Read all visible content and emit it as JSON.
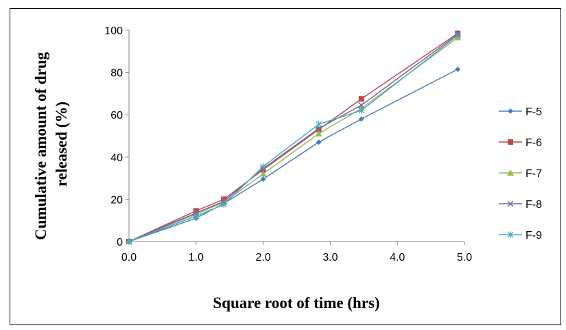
{
  "chart_data": {
    "type": "line",
    "title": "",
    "xlabel": "Square root of time (hrs)",
    "ylabel_lines": [
      "Cumulative amount of drug",
      "released (%)"
    ],
    "xlim": [
      0,
      5
    ],
    "ylim": [
      0,
      100
    ],
    "x_ticks": [
      0,
      1,
      2,
      3,
      4,
      5
    ],
    "x_tick_labels": [
      "0.0",
      "1.0",
      "2.0",
      "3.0",
      "4.0",
      "5.0"
    ],
    "y_ticks": [
      0,
      20,
      40,
      60,
      80,
      100
    ],
    "y_tick_labels": [
      "0",
      "20",
      "40",
      "60",
      "80",
      "100"
    ],
    "grid": false,
    "legend_position": "right",
    "x": [
      0,
      1.0,
      1.414,
      2.0,
      2.828,
      3.464,
      4.899
    ],
    "series": [
      {
        "name": "F-5",
        "color": "#4a7ebb",
        "marker": "diamond",
        "values": [
          0,
          11,
          18,
          29.5,
          47,
          58,
          81.5
        ]
      },
      {
        "name": "F-6",
        "color": "#be4b48",
        "marker": "square",
        "values": [
          0,
          14.5,
          20,
          34,
          53,
          67.5,
          98.5
        ]
      },
      {
        "name": "F-7",
        "color": "#98b954",
        "marker": "triangle",
        "values": [
          0,
          13,
          18.5,
          32,
          51,
          63,
          96.5
        ]
      },
      {
        "name": "F-8",
        "color": "#7d60a0",
        "marker": "x",
        "values": [
          0,
          13.5,
          19,
          34.5,
          53.5,
          64.5,
          98
        ]
      },
      {
        "name": "F-9",
        "color": "#46aac5",
        "marker": "star",
        "values": [
          0,
          12,
          17.5,
          35.5,
          55.5,
          62,
          97.5
        ]
      }
    ]
  }
}
